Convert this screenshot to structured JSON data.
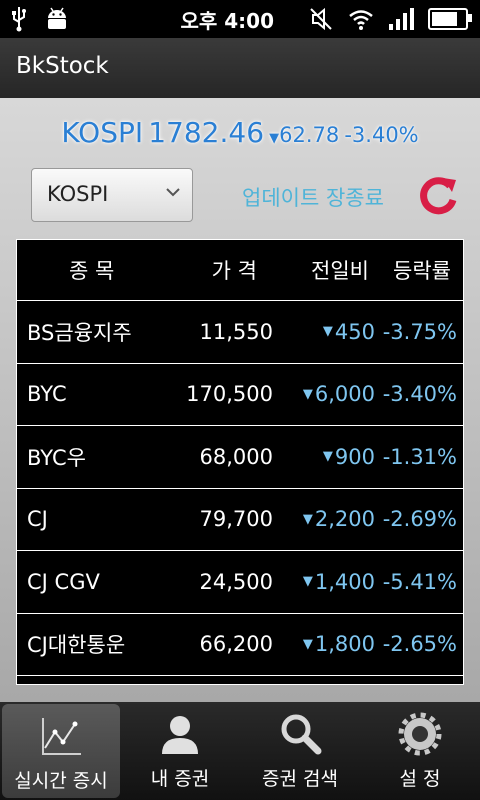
{
  "status": {
    "time": "오후 4:00",
    "battery_level": 0.9
  },
  "app": {
    "title": "BkStock"
  },
  "index": {
    "name": "KOSPI",
    "value": "1782.46",
    "change": "62.78",
    "rate": "-3.40%",
    "direction": "down"
  },
  "market_select": {
    "value": "KOSPI"
  },
  "update_label": "업데이트 장종료",
  "table": {
    "headers": {
      "name": "종 목",
      "price": "가 격",
      "diff": "전일비",
      "rate": "등락률"
    },
    "rows": [
      {
        "name": "BS금융지주",
        "price": "11,550",
        "diff": "450",
        "rate": "-3.75%"
      },
      {
        "name": "BYC",
        "price": "170,500",
        "diff": "6,000",
        "rate": "-3.40%"
      },
      {
        "name": "BYC우",
        "price": "68,000",
        "diff": "900",
        "rate": "-1.31%"
      },
      {
        "name": "CJ",
        "price": "79,700",
        "diff": "2,200",
        "rate": "-2.69%"
      },
      {
        "name": "CJ CGV",
        "price": "24,500",
        "diff": "1,400",
        "rate": "-5.41%"
      },
      {
        "name": "CJ대한통운",
        "price": "66,200",
        "diff": "1,800",
        "rate": "-2.65%"
      }
    ]
  },
  "tabs": [
    {
      "label": "실시간 증시",
      "icon": "chart-icon",
      "active": true
    },
    {
      "label": "내 증권",
      "icon": "person-icon",
      "active": false
    },
    {
      "label": "증권 검색",
      "icon": "search-icon",
      "active": false
    },
    {
      "label": "설 정",
      "icon": "gear-icon",
      "active": false
    }
  ],
  "colors": {
    "accent": "#2a7fd4",
    "down": "#7fc6f0",
    "refresh": "#d81e46"
  }
}
